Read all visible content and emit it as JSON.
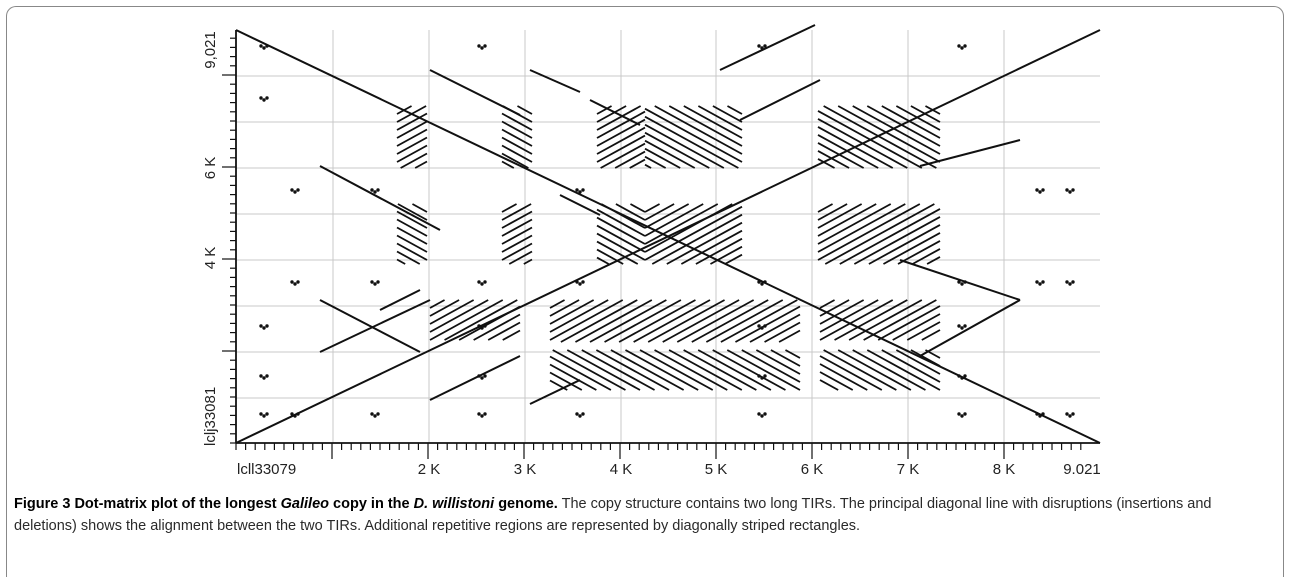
{
  "chart_data": {
    "type": "scatter",
    "x_axis": {
      "seq_label": "lcll33079",
      "tick_labels": [
        "2 K",
        "3 K",
        "4 K",
        "5 K",
        "6 K",
        "7 K",
        "8 K",
        "9.021"
      ],
      "range": [
        1,
        9021
      ]
    },
    "y_axis": {
      "seq_label": "lclj33081",
      "tick_labels": [
        "4 K",
        "6 K",
        "9,021"
      ],
      "range": [
        1,
        9021
      ]
    },
    "grid": true
  },
  "caption": {
    "figure_label": "Figure 3",
    "title_pre": "Dot-matrix plot of the longest ",
    "title_italic_1": "Galileo",
    "title_mid": " copy in the ",
    "title_italic_2": "D. willistoni",
    "title_post": " genome.",
    "body": " The copy structure contains two long TIRs. The principal diagonal line with disruptions (insertions and deletions) shows the alignment between the two TIRs. Additional repetitive regions are represented by diagonally striped rectangles."
  }
}
